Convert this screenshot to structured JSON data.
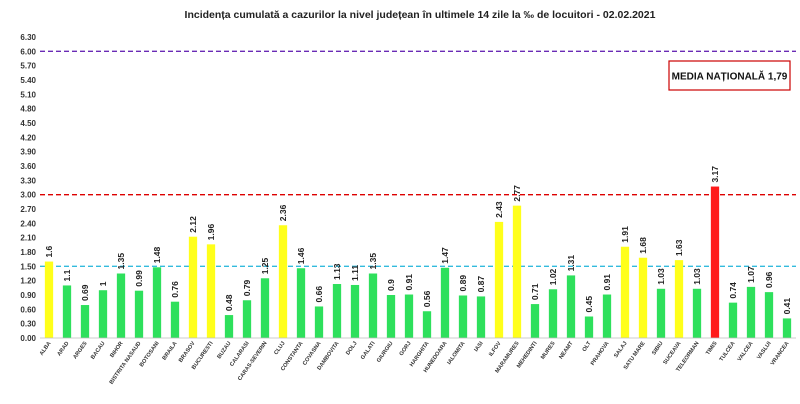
{
  "chart_data": {
    "type": "bar",
    "title": "Incidența cumulată a cazurilor la nivel județean în ultimele 14 zile   la ‰ de locuitori  - 02.02.2021",
    "xlabel": "",
    "ylabel": "",
    "ylim": [
      0,
      6.3
    ],
    "yticks": [
      "0.00",
      "0.30",
      "0.60",
      "0.90",
      "1.20",
      "1.50",
      "1.80",
      "2.10",
      "2.40",
      "2.70",
      "3.00",
      "3.30",
      "3.60",
      "3.90",
      "4.20",
      "4.50",
      "4.80",
      "5.10",
      "5.40",
      "5.70",
      "6.00",
      "6.30"
    ],
    "grid": false,
    "categories": [
      "ALBA",
      "ARAD",
      "ARGES",
      "BACAU",
      "BIHOR",
      "BISTRITA NASAUD",
      "BOTOSANI",
      "BRAILA",
      "BRASOV",
      "BUCURESTI",
      "BUZAU",
      "CALARASI",
      "CARAS-SEVERIN",
      "CLUJ",
      "CONSTANTA",
      "COVASNA",
      "DAMBOVITA",
      "DOLJ",
      "GALATI",
      "GIURGIU",
      "GORJ",
      "HARGHITA",
      "HUNEDOARA",
      "IALOMITA",
      "IASI",
      "ILFOV",
      "MARAMURES",
      "MEHEDINTI",
      "MURES",
      "NEAMT",
      "OLT",
      "PRAHOVA",
      "SALAJ",
      "SATU MARE",
      "SIBIU",
      "SUCEAVA",
      "TELEORMAN",
      "TIMIS",
      "TULCEA",
      "VALCEA",
      "VASLUI",
      "VRANCEA"
    ],
    "values": [
      1.6,
      1.1,
      0.69,
      1,
      1.35,
      0.99,
      1.48,
      0.76,
      2.12,
      1.96,
      0.48,
      0.79,
      1.25,
      2.36,
      1.46,
      0.66,
      1.13,
      1.11,
      1.35,
      0.9,
      0.91,
      0.56,
      1.47,
      0.89,
      0.87,
      2.43,
      2.77,
      0.71,
      1.02,
      1.31,
      0.45,
      0.91,
      1.91,
      1.68,
      1.03,
      1.63,
      1.03,
      3.17,
      0.74,
      1.07,
      0.96,
      0.41
    ],
    "value_labels": [
      "1.6",
      "1.1",
      "0.69",
      "1",
      "1.35",
      "0.99",
      "1.48",
      "0.76",
      "2.12",
      "1.96",
      "0.48",
      "0.79",
      "1.25",
      "2.36",
      "1.46",
      "0.66",
      "1.13",
      "1.11",
      "1.35",
      "0.9",
      "0.91",
      "0.56",
      "1.47",
      "0.89",
      "0.87",
      "2.43",
      "2.77",
      "0.71",
      "1.02",
      "1.31",
      "0.45",
      "0.91",
      "1.91",
      "1.68",
      "1.03",
      "1.63",
      "1.03",
      "3.17",
      "0.74",
      "1.07",
      "0.96",
      "0.41"
    ],
    "thresholds": [
      {
        "value": 1.5,
        "color": "#33bbdd",
        "style": "dashed"
      },
      {
        "value": 3.0,
        "color": "#dd0000",
        "style": "dashed"
      },
      {
        "value": 6.0,
        "color": "#6a2bb5",
        "style": "dashed"
      }
    ],
    "bar_colors": {
      "low": "#2ee05c",
      "mid": "#ffff1a",
      "high": "#ff1a1a"
    },
    "legend_box": {
      "text": "MEDIA NAȚIONALĂ 1,79",
      "border_color": "#cc0000",
      "placement": "top-right"
    }
  }
}
